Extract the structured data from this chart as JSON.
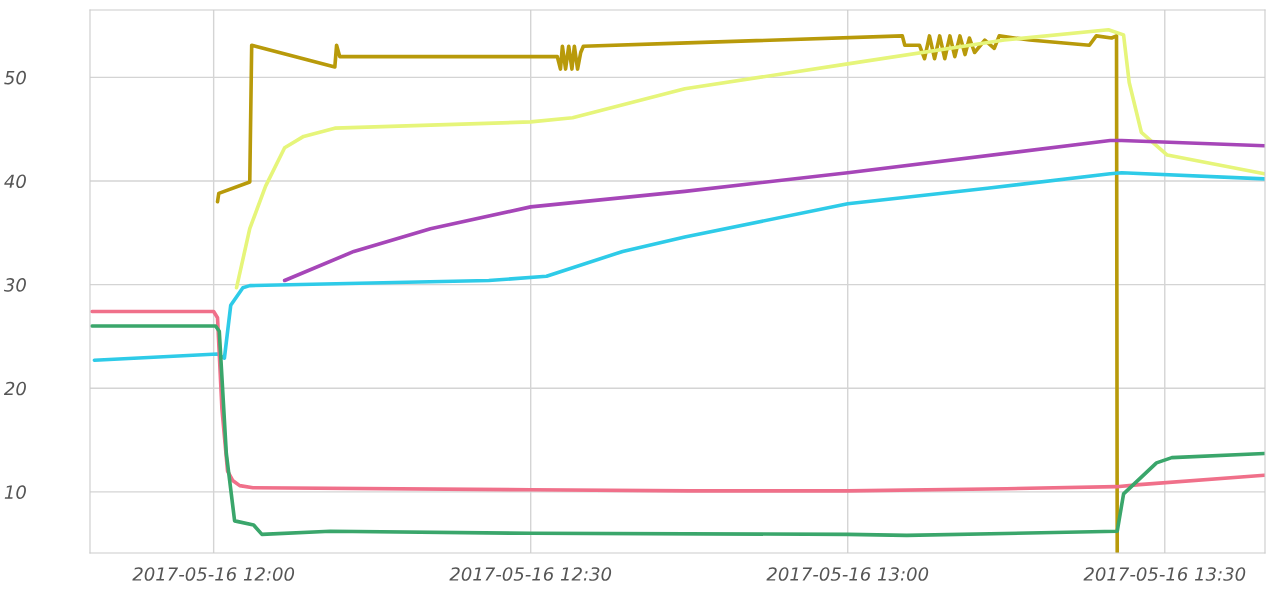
{
  "chart_data": {
    "type": "line",
    "grid": true,
    "legend": false,
    "marker": "none",
    "line_style": "solid",
    "xlim": [
      "2017-05-16T11:48:18",
      "2017-05-16T13:39:29"
    ],
    "ylim": [
      4.1,
      56.5
    ],
    "xticks": [
      {
        "value": "2017-05-16T12:00",
        "label": "2017-05-16 12:00"
      },
      {
        "value": "2017-05-16T12:30",
        "label": "2017-05-16 12:30"
      },
      {
        "value": "2017-05-16T13:00",
        "label": "2017-05-16 13:00"
      },
      {
        "value": "2017-05-16T13:30",
        "label": "2017-05-16 13:30"
      }
    ],
    "yticks": [
      10,
      20,
      30,
      40,
      50
    ],
    "series": [
      {
        "color": "#b89a0a",
        "x": [
          "2017-05-16T12:00:22",
          "2017-05-16T12:00:29",
          "2017-05-16T12:03:25",
          "2017-05-16T12:03:36",
          "2017-05-16T12:11:28",
          "2017-05-16T12:11:38",
          "2017-05-16T12:11:56",
          "2017-05-16T12:32:31",
          "2017-05-16T12:32:49",
          "2017-05-16T12:33:00",
          "2017-05-16T12:33:18",
          "2017-05-16T12:33:36",
          "2017-05-16T12:33:54",
          "2017-05-16T12:34:08",
          "2017-05-16T12:34:26",
          "2017-05-16T12:34:44",
          "2017-05-16T12:34:59",
          "2017-05-16T12:44:06",
          "2017-05-16T13:05:10",
          "2017-05-16T13:05:24",
          "2017-05-16T13:06:47",
          "2017-05-16T13:07:16",
          "2017-05-16T13:07:44",
          "2017-05-16T13:08:13",
          "2017-05-16T13:08:42",
          "2017-05-16T13:09:11",
          "2017-05-16T13:09:40",
          "2017-05-16T13:10:08",
          "2017-05-16T13:10:37",
          "2017-05-16T13:11:06",
          "2017-05-16T13:11:31",
          "2017-05-16T13:12:00",
          "2017-05-16T13:12:58",
          "2017-05-16T13:13:52",
          "2017-05-16T13:14:20",
          "2017-05-16T13:17:13",
          "2017-05-16T13:22:52",
          "2017-05-16T13:23:31",
          "2017-05-16T13:24:58",
          "2017-05-16T13:25:26",
          "2017-05-16T13:25:30"
        ],
        "values": [
          38.0,
          38.8,
          39.9,
          53.1,
          51.0,
          53.1,
          52.0,
          52.0,
          50.8,
          53.0,
          50.8,
          53.0,
          50.8,
          53.0,
          50.8,
          52.4,
          53.0,
          53.3,
          54.0,
          53.1,
          53.1,
          51.8,
          54.0,
          51.8,
          54.0,
          51.8,
          54.0,
          52.0,
          54.0,
          52.2,
          53.8,
          52.4,
          53.6,
          52.8,
          54.0,
          53.6,
          53.1,
          54.0,
          53.8,
          54.0,
          4.2
        ]
      },
      {
        "color": "#e6f57a",
        "x": [
          "2017-05-16T12:02:10",
          "2017-05-16T12:03:25",
          "2017-05-16T12:04:55",
          "2017-05-16T12:06:43",
          "2017-05-16T12:08:31",
          "2017-05-16T12:11:28",
          "2017-05-16T12:30:00",
          "2017-05-16T12:33:58",
          "2017-05-16T12:44:35",
          "2017-05-16T13:00:00",
          "2017-05-16T13:14:49",
          "2017-05-16T13:24:40",
          "2017-05-16T13:26:06",
          "2017-05-16T13:26:38",
          "2017-05-16T13:27:47",
          "2017-05-16T13:30:14",
          "2017-05-16T13:39:25"
        ],
        "values": [
          29.7,
          35.4,
          39.5,
          43.2,
          44.3,
          45.1,
          45.7,
          46.1,
          48.9,
          51.3,
          53.6,
          54.6,
          54.1,
          49.5,
          44.7,
          42.5,
          40.7
        ]
      },
      {
        "color": "#a646b8",
        "x": [
          "2017-05-16T12:06:43",
          "2017-05-16T12:13:16",
          "2017-05-16T12:20:31",
          "2017-05-16T12:30:00",
          "2017-05-16T12:44:35",
          "2017-05-16T13:00:00",
          "2017-05-16T13:24:50",
          "2017-05-16T13:25:55",
          "2017-05-16T13:39:25"
        ],
        "values": [
          30.4,
          33.2,
          35.4,
          37.5,
          39.0,
          40.8,
          43.9,
          43.9,
          43.4
        ]
      },
      {
        "color": "#2ecbe8",
        "x": [
          "2017-05-16T11:48:43",
          "2017-05-16T12:00:22",
          "2017-05-16T12:01:01",
          "2017-05-16T12:01:37",
          "2017-05-16T12:02:46",
          "2017-05-16T12:03:25",
          "2017-05-16T12:26:02",
          "2017-05-16T12:31:30",
          "2017-05-16T12:38:42",
          "2017-05-16T12:44:35",
          "2017-05-16T13:00:00",
          "2017-05-16T13:13:12",
          "2017-05-16T13:24:50",
          "2017-05-16T13:25:55",
          "2017-05-16T13:39:25"
        ],
        "values": [
          22.7,
          23.3,
          22.9,
          28.0,
          29.7,
          29.9,
          30.4,
          30.8,
          33.2,
          34.6,
          37.8,
          39.3,
          40.7,
          40.8,
          40.2
        ]
      },
      {
        "color": "#f0708a",
        "x": [
          "2017-05-16T11:48:29",
          "2017-05-16T12:00:00",
          "2017-05-16T12:00:22",
          "2017-05-16T12:00:47",
          "2017-05-16T12:01:19",
          "2017-05-16T12:01:48",
          "2017-05-16T12:02:28",
          "2017-05-16T12:03:43",
          "2017-05-16T12:30:00",
          "2017-05-16T12:45:00",
          "2017-05-16T13:00:00",
          "2017-05-16T13:15:00",
          "2017-05-16T13:25:26",
          "2017-05-16T13:27:36",
          "2017-05-16T13:39:25"
        ],
        "values": [
          27.4,
          27.4,
          26.8,
          18.0,
          12.0,
          11.1,
          10.6,
          10.4,
          10.2,
          10.1,
          10.1,
          10.3,
          10.5,
          10.7,
          11.6
        ]
      },
      {
        "color": "#3aa66b",
        "x": [
          "2017-05-16T11:48:29",
          "2017-05-16T12:00:11",
          "2017-05-16T12:00:32",
          "2017-05-16T12:01:12",
          "2017-05-16T12:01:59",
          "2017-05-16T12:03:47",
          "2017-05-16T12:04:34",
          "2017-05-16T12:11:02",
          "2017-05-16T12:30:00",
          "2017-05-16T13:00:00",
          "2017-05-16T13:05:35",
          "2017-05-16T13:25:30",
          "2017-05-16T13:26:06",
          "2017-05-16T13:29:13",
          "2017-05-16T13:30:40",
          "2017-05-16T13:39:25"
        ],
        "values": [
          26.0,
          26.0,
          25.5,
          13.7,
          7.2,
          6.8,
          5.9,
          6.2,
          6.0,
          5.9,
          5.8,
          6.2,
          9.8,
          12.8,
          13.3,
          13.7
        ]
      }
    ]
  }
}
